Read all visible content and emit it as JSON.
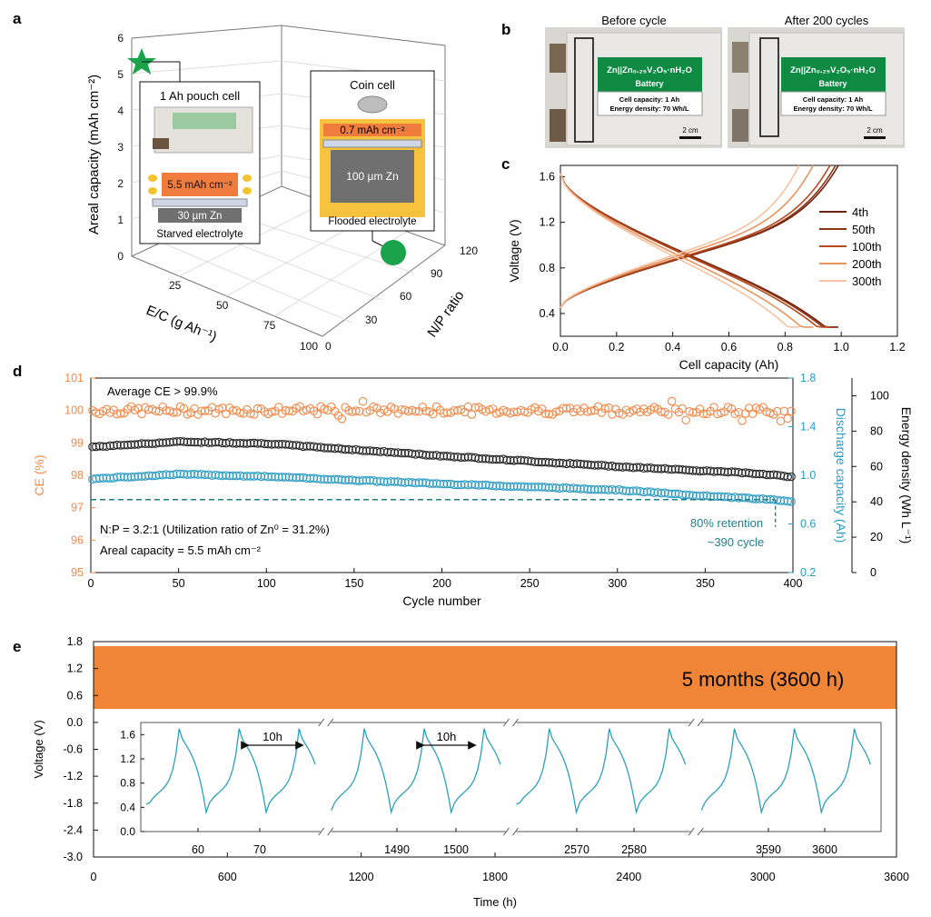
{
  "panels": {
    "a": {
      "letter": "a",
      "z_label": "Areal capacity (mAh cm⁻²)",
      "x_label": "E/C (g Ah⁻¹)",
      "y_label": "N/P ratio",
      "z_ticks": [
        "0",
        "1",
        "2",
        "3",
        "4",
        "5",
        "6"
      ],
      "x_ticks": [
        "25",
        "50",
        "75",
        "100"
      ],
      "y_ticks": [
        "0",
        "30",
        "60",
        "90",
        "120"
      ],
      "pouch": {
        "title": "1 Ah pouch cell",
        "areal": "5.5 mAh cm⁻²",
        "zn": "30 µm Zn",
        "electrolyte": "Starved electrolyte"
      },
      "coin": {
        "title": "Coin cell",
        "areal": "0.7 mAh cm⁻²",
        "zn": "100 µm Zn",
        "electrolyte": "Flooded electrolyte"
      },
      "photo_label_line1": "Zn||Zn₀.₂₅V₂O₅",
      "photo_label_line2": "Cell capacity: 1 Ah",
      "photo_label_line3": "Energy density: 70 Wh/L",
      "star_color": "#1aa34a",
      "dot_color": "#1aa34a"
    },
    "b": {
      "letter": "b",
      "before_title": "Before cycle",
      "after_title": "After 200 cycles",
      "label_title": "Zn||Zn₀.₂₅V₂O₅·nH₂O",
      "label_sub": "Battery",
      "cell_capacity": "Cell capacity: 1 Ah",
      "energy_density": "Energy density: 70 Wh/L",
      "scale": "2 cm",
      "label_color": "#0f8a43"
    },
    "c": {
      "letter": "c"
    },
    "d": {
      "letter": "d",
      "avg_ce": "Average CE > 99.9%",
      "np_text": "N:P = 3.2:1 (Utilization ratio of Zn⁰ = 31.2%)",
      "areal_text": "Areal capacity = 5.5 mAh cm⁻²",
      "retention_line1": "80% retention",
      "retention_line2": "~390 cycle"
    },
    "e": {
      "letter": "e",
      "duration": "5 months (3600 h)",
      "window_labels": [
        "10h",
        "10h"
      ]
    }
  },
  "chart_data": [
    {
      "id": "c",
      "type": "line",
      "title": "",
      "xlabel": "Cell capacity (Ah)",
      "ylabel": "Voltage (V)",
      "xlim": [
        0,
        1.2
      ],
      "ylim": [
        0.2,
        1.7
      ],
      "x_ticks": [
        "0.0",
        "0.2",
        "0.4",
        "0.6",
        "0.8",
        "1.0",
        "1.2"
      ],
      "y_ticks": [
        "0.4",
        "0.8",
        "1.2",
        "1.6"
      ],
      "series": [
        {
          "name": "4th",
          "capacity": 0.99,
          "color": "#6b2410"
        },
        {
          "name": "50th",
          "capacity": 0.98,
          "color": "#8e3414"
        },
        {
          "name": "100th",
          "capacity": 0.96,
          "color": "#b8491c"
        },
        {
          "name": "200th",
          "capacity": 0.9,
          "color": "#e8935e"
        },
        {
          "name": "300th",
          "capacity": 0.85,
          "color": "#f6c3a0"
        }
      ]
    },
    {
      "id": "d",
      "type": "scatter",
      "xlabel": "Cycle number",
      "ylabel_left": "CE (%)",
      "ylabel_right1": "Discharge capacity (Ah)",
      "ylabel_right2": "Energy density (Wh L⁻¹)",
      "xlim": [
        0,
        400
      ],
      "ylim_left": [
        95,
        101
      ],
      "ylim_right1": [
        0.2,
        1.8
      ],
      "ylim_right2": [
        0,
        110
      ],
      "x_ticks": [
        "0",
        "50",
        "100",
        "150",
        "200",
        "250",
        "300",
        "350",
        "400"
      ],
      "left_ticks": [
        "95",
        "96",
        "97",
        "98",
        "99",
        "100",
        "101"
      ],
      "right1_ticks": [
        "0.2",
        "0.6",
        "1.0",
        "1.4",
        "1.8"
      ],
      "right2_ticks": [
        "0",
        "20",
        "40",
        "60",
        "80",
        "100"
      ],
      "retention_capacity": 0.8,
      "series": [
        {
          "name": "CE",
          "axis": "left",
          "color": "#f08a4b",
          "anchors": [
            [
              0,
              100.0
            ],
            [
              400,
              100.0
            ]
          ]
        },
        {
          "name": "Energy density",
          "axis": "right2",
          "color": "#222222",
          "anchors": [
            [
              0,
              71
            ],
            [
              50,
              74
            ],
            [
              100,
              73
            ],
            [
              200,
              66
            ],
            [
              300,
              60
            ],
            [
              380,
              56
            ],
            [
              400,
              54
            ]
          ]
        },
        {
          "name": "Discharge capacity",
          "axis": "right1",
          "color": "#2a9bc4",
          "anchors": [
            [
              0,
              0.97
            ],
            [
              50,
              1.01
            ],
            [
              100,
              0.99
            ],
            [
              200,
              0.93
            ],
            [
              300,
              0.88
            ],
            [
              350,
              0.83
            ],
            [
              390,
              0.8
            ],
            [
              400,
              0.78
            ]
          ]
        }
      ]
    },
    {
      "id": "e",
      "type": "line",
      "xlabel": "Time (h)",
      "ylabel": "Voltage (V)",
      "xlim": [
        0,
        3600
      ],
      "ylim": [
        -3.0,
        1.8
      ],
      "x_ticks": [
        "0",
        "600",
        "1200",
        "1800",
        "2400",
        "3000",
        "3600"
      ],
      "y_ticks": [
        "-3.0",
        "-2.4",
        "-1.8",
        "-1.2",
        "-0.6",
        "0.0",
        "0.6",
        "1.2",
        "1.8"
      ],
      "band_range": [
        0.3,
        1.7
      ],
      "band_color": "#f08537",
      "inset": {
        "ylim": [
          0.0,
          1.8
        ],
        "y_ticks": [
          "0.0",
          "0.4",
          "0.8",
          "1.2",
          "1.6"
        ],
        "segments": [
          {
            "x_labels": [
              "60",
              "70"
            ]
          },
          {
            "x_labels": [
              "1490",
              "1500"
            ]
          },
          {
            "x_labels": [
              "2570",
              "2580"
            ]
          },
          {
            "x_labels": [
              "3590",
              "3600"
            ]
          }
        ],
        "line_color": "#2aa1b8"
      }
    }
  ]
}
